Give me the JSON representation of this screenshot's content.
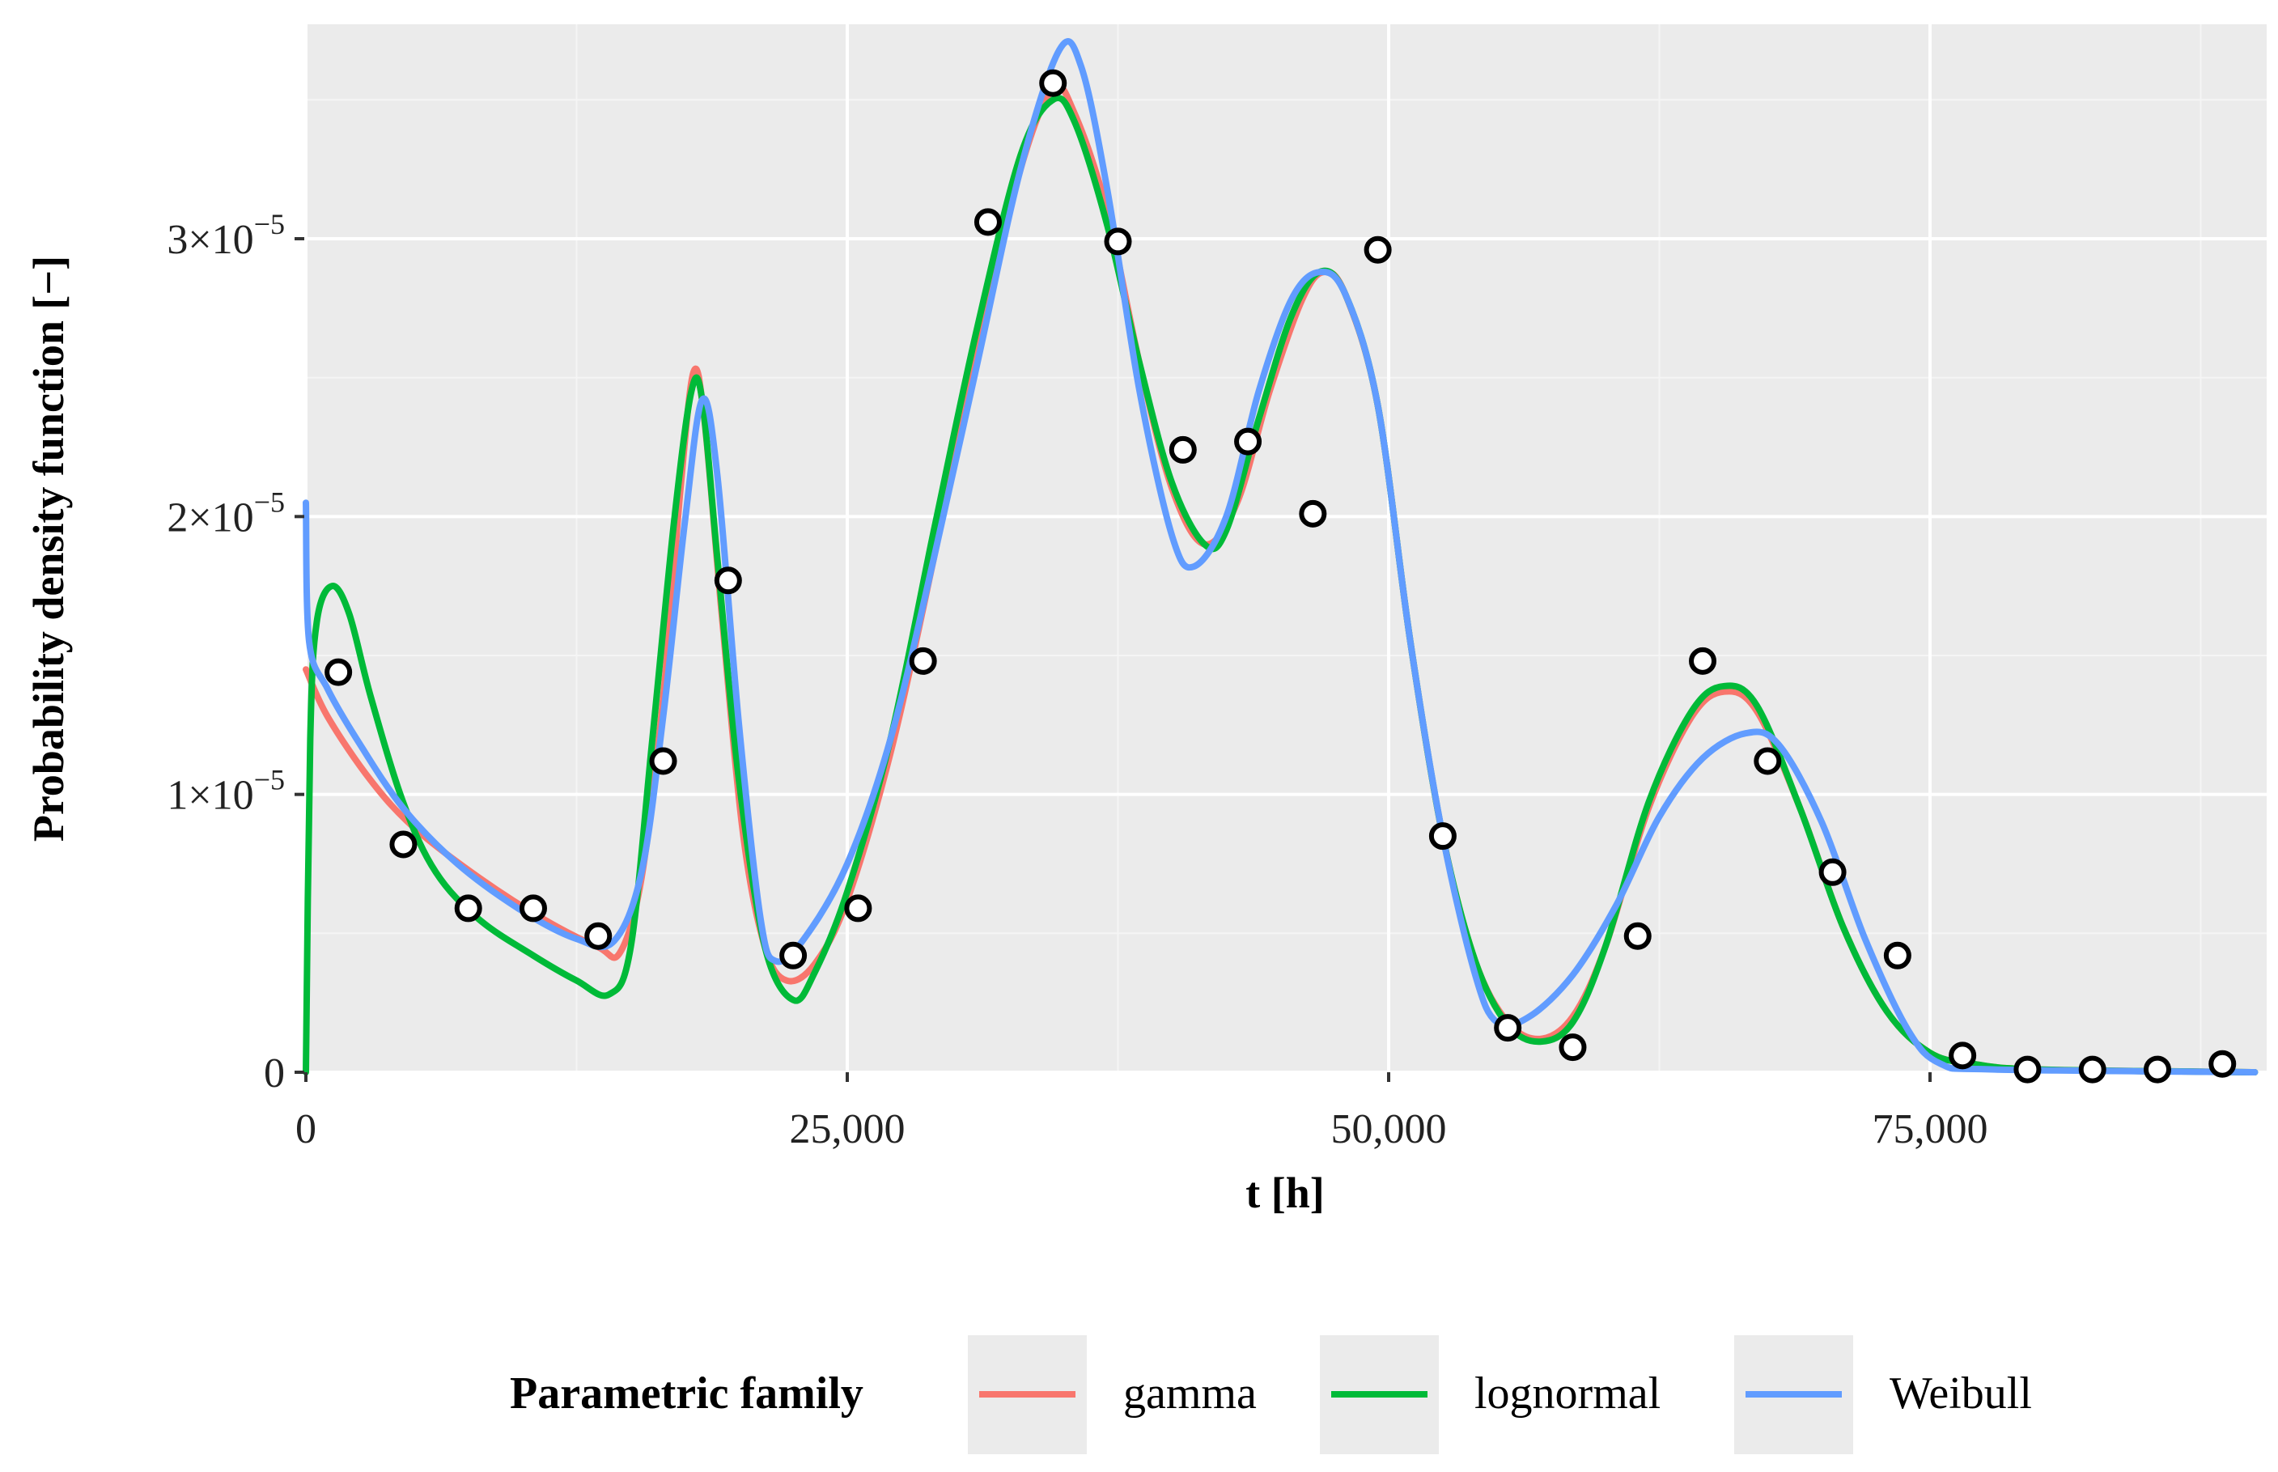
{
  "chart_data": {
    "type": "line",
    "title": "",
    "xlabel": "t [h]",
    "ylabel": "Probability density function [−]",
    "xlim": [
      0,
      90000
    ],
    "ylim": [
      0,
      3.75e-05
    ],
    "x_ticks": [
      {
        "value": 0,
        "label": "0"
      },
      {
        "value": 25000,
        "label": "25,000"
      },
      {
        "value": 50000,
        "label": "50,000"
      },
      {
        "value": 75000,
        "label": "75,000"
      }
    ],
    "y_ticks": [
      {
        "value": 0,
        "mant": "0",
        "exp": ""
      },
      {
        "value": 1e-05,
        "mant": "1×10",
        "exp": "−5"
      },
      {
        "value": 2e-05,
        "mant": "2×10",
        "exp": "−5"
      },
      {
        "value": 3e-05,
        "mant": "3×10",
        "exp": "−5"
      }
    ],
    "grid": true,
    "legend": {
      "title": "Parametric family",
      "position": "bottom",
      "entries": [
        {
          "name": "gamma",
          "color": "#F8766D"
        },
        {
          "name": "lognormal",
          "color": "#00BA38"
        },
        {
          "name": "Weibull",
          "color": "#619CFF"
        }
      ]
    },
    "series": [
      {
        "name": "gamma",
        "color": "#F8766D",
        "points": [
          [
            0,
            1.45e-05
          ],
          [
            1000,
            1.28e-05
          ],
          [
            3000,
            1.05e-05
          ],
          [
            5000,
            8.8e-06
          ],
          [
            8000,
            7e-06
          ],
          [
            11000,
            5.5e-06
          ],
          [
            13500,
            4.5e-06
          ],
          [
            14500,
            4.3e-06
          ],
          [
            15500,
            7e-06
          ],
          [
            16500,
            1.35e-05
          ],
          [
            17300,
            2.1e-05
          ],
          [
            17900,
            2.52e-05
          ],
          [
            18400,
            2.35e-05
          ],
          [
            19200,
            1.65e-05
          ],
          [
            20200,
            8.5e-06
          ],
          [
            21200,
            4.5e-06
          ],
          [
            22200,
            3.3e-06
          ],
          [
            23500,
            3.9e-06
          ],
          [
            25000,
            6.2e-06
          ],
          [
            27000,
            1.15e-05
          ],
          [
            29000,
            1.85e-05
          ],
          [
            31000,
            2.6e-05
          ],
          [
            33000,
            3.25e-05
          ],
          [
            34500,
            3.54e-05
          ],
          [
            35500,
            3.45e-05
          ],
          [
            37000,
            3.1e-05
          ],
          [
            38500,
            2.55e-05
          ],
          [
            40000,
            2.1e-05
          ],
          [
            41500,
            1.9e-05
          ],
          [
            43000,
            2.05e-05
          ],
          [
            44500,
            2.45e-05
          ],
          [
            46000,
            2.78e-05
          ],
          [
            47000,
            2.88e-05
          ],
          [
            48000,
            2.8e-05
          ],
          [
            49500,
            2.4e-05
          ],
          [
            51000,
            1.55e-05
          ],
          [
            52500,
            8.5e-06
          ],
          [
            54000,
            4e-06
          ],
          [
            55500,
            1.8e-06
          ],
          [
            57000,
            1.2e-06
          ],
          [
            58500,
            2e-06
          ],
          [
            60000,
            4.5e-06
          ],
          [
            62000,
            9.5e-06
          ],
          [
            64000,
            1.28e-05
          ],
          [
            65500,
            1.37e-05
          ],
          [
            67000,
            1.3e-05
          ],
          [
            69000,
            9.5e-06
          ],
          [
            71000,
            5.2e-06
          ],
          [
            73000,
            2.2e-06
          ],
          [
            75000,
            7e-07
          ],
          [
            77000,
            3e-07
          ],
          [
            80000,
            1e-07
          ],
          [
            90000,
            0
          ]
        ]
      },
      {
        "name": "lognormal",
        "color": "#00BA38",
        "points": [
          [
            0,
            0
          ],
          [
            200,
            1.2e-05
          ],
          [
            500,
            1.62e-05
          ],
          [
            1200,
            1.75e-05
          ],
          [
            2000,
            1.65e-05
          ],
          [
            3000,
            1.35e-05
          ],
          [
            4500,
            9.7e-06
          ],
          [
            6000,
            7.2e-06
          ],
          [
            8000,
            5.5e-06
          ],
          [
            10500,
            4.2e-06
          ],
          [
            12500,
            3.3e-06
          ],
          [
            14000,
            2.8e-06
          ],
          [
            15000,
            4.5e-06
          ],
          [
            16000,
            1.2e-05
          ],
          [
            17000,
            1.98e-05
          ],
          [
            17800,
            2.45e-05
          ],
          [
            18300,
            2.42e-05
          ],
          [
            19000,
            1.85e-05
          ],
          [
            20000,
            1.05e-05
          ],
          [
            21200,
            4.5e-06
          ],
          [
            22500,
            2.6e-06
          ],
          [
            23500,
            3.6e-06
          ],
          [
            25000,
            6.5e-06
          ],
          [
            27000,
            1.2e-05
          ],
          [
            29000,
            1.95e-05
          ],
          [
            31000,
            2.68e-05
          ],
          [
            33000,
            3.3e-05
          ],
          [
            34500,
            3.5e-05
          ],
          [
            35500,
            3.42e-05
          ],
          [
            37000,
            3.05e-05
          ],
          [
            38500,
            2.55e-05
          ],
          [
            40000,
            2.12e-05
          ],
          [
            41500,
            1.9e-05
          ],
          [
            42500,
            1.95e-05
          ],
          [
            44000,
            2.35e-05
          ],
          [
            45500,
            2.72e-05
          ],
          [
            46800,
            2.88e-05
          ],
          [
            48000,
            2.8e-05
          ],
          [
            49500,
            2.4e-05
          ],
          [
            51000,
            1.55e-05
          ],
          [
            52500,
            8.5e-06
          ],
          [
            54000,
            4e-06
          ],
          [
            55500,
            1.7e-06
          ],
          [
            57000,
            1.1e-06
          ],
          [
            58500,
            1.8e-06
          ],
          [
            60000,
            4.5e-06
          ],
          [
            62000,
            9.7e-06
          ],
          [
            64000,
            1.3e-05
          ],
          [
            65500,
            1.39e-05
          ],
          [
            67000,
            1.32e-05
          ],
          [
            69000,
            9.5e-06
          ],
          [
            71000,
            5.2e-06
          ],
          [
            73000,
            2.2e-06
          ],
          [
            75000,
            7e-07
          ],
          [
            77000,
            3e-07
          ],
          [
            80000,
            1e-07
          ],
          [
            90000,
            0
          ]
        ]
      },
      {
        "name": "Weibull",
        "color": "#619CFF",
        "points": [
          [
            0,
            2.05e-05
          ],
          [
            150,
            1.55e-05
          ],
          [
            1000,
            1.38e-05
          ],
          [
            2500,
            1.18e-05
          ],
          [
            4500,
            9.5e-06
          ],
          [
            7000,
            7.5e-06
          ],
          [
            10000,
            5.8e-06
          ],
          [
            12500,
            4.8e-06
          ],
          [
            14200,
            4.7e-06
          ],
          [
            15500,
            7.2e-06
          ],
          [
            16500,
            1.28e-05
          ],
          [
            17500,
            1.98e-05
          ],
          [
            18300,
            2.42e-05
          ],
          [
            19000,
            2.15e-05
          ],
          [
            20000,
            1.25e-05
          ],
          [
            21000,
            5.5e-06
          ],
          [
            21700,
            4e-06
          ],
          [
            23000,
            4.8e-06
          ],
          [
            25000,
            7.5e-06
          ],
          [
            27000,
            1.2e-05
          ],
          [
            29000,
            1.85e-05
          ],
          [
            31000,
            2.55e-05
          ],
          [
            33000,
            3.25e-05
          ],
          [
            34800,
            3.68e-05
          ],
          [
            35800,
            3.62e-05
          ],
          [
            37000,
            3.18e-05
          ],
          [
            38500,
            2.45e-05
          ],
          [
            40000,
            1.93e-05
          ],
          [
            41000,
            1.82e-05
          ],
          [
            42500,
            2e-05
          ],
          [
            44000,
            2.45e-05
          ],
          [
            45500,
            2.78e-05
          ],
          [
            46800,
            2.88e-05
          ],
          [
            48000,
            2.8e-05
          ],
          [
            49500,
            2.4e-05
          ],
          [
            51000,
            1.55e-05
          ],
          [
            52500,
            8.5e-06
          ],
          [
            54000,
            3.5e-06
          ],
          [
            55000,
            1.8e-06
          ],
          [
            56500,
            2e-06
          ],
          [
            58500,
            3.5e-06
          ],
          [
            60500,
            6e-06
          ],
          [
            62500,
            9.2e-06
          ],
          [
            64500,
            1.13e-05
          ],
          [
            66500,
            1.22e-05
          ],
          [
            68000,
            1.18e-05
          ],
          [
            70000,
            9e-06
          ],
          [
            72000,
            4.8e-06
          ],
          [
            74000,
            1.5e-06
          ],
          [
            75500,
            3e-07
          ],
          [
            78000,
            1e-07
          ],
          [
            90000,
            0
          ]
        ]
      }
    ],
    "empirical_points": {
      "x": [
        1500,
        4500,
        7500,
        10500,
        13500,
        16500,
        19500,
        22500,
        25500,
        28500,
        31500,
        34500,
        37500,
        40500,
        43500,
        46500,
        49500,
        52500,
        55500,
        58500,
        61500,
        64500,
        67500,
        70500,
        73500,
        76500,
        79500,
        82500,
        85500,
        88500
      ],
      "y": [
        1.44e-05,
        8.2e-06,
        5.9e-06,
        5.9e-06,
        4.9e-06,
        1.12e-05,
        1.77e-05,
        4.2e-06,
        5.9e-06,
        1.48e-05,
        3.06e-05,
        3.56e-05,
        2.99e-05,
        2.24e-05,
        2.27e-05,
        2.01e-05,
        2.96e-05,
        8.5e-06,
        1.6e-06,
        9e-07,
        4.9e-06,
        1.48e-05,
        1.12e-05,
        7.2e-06,
        4.2e-06,
        6e-07,
        1e-07,
        1e-07,
        1e-07,
        3e-07
      ]
    }
  }
}
